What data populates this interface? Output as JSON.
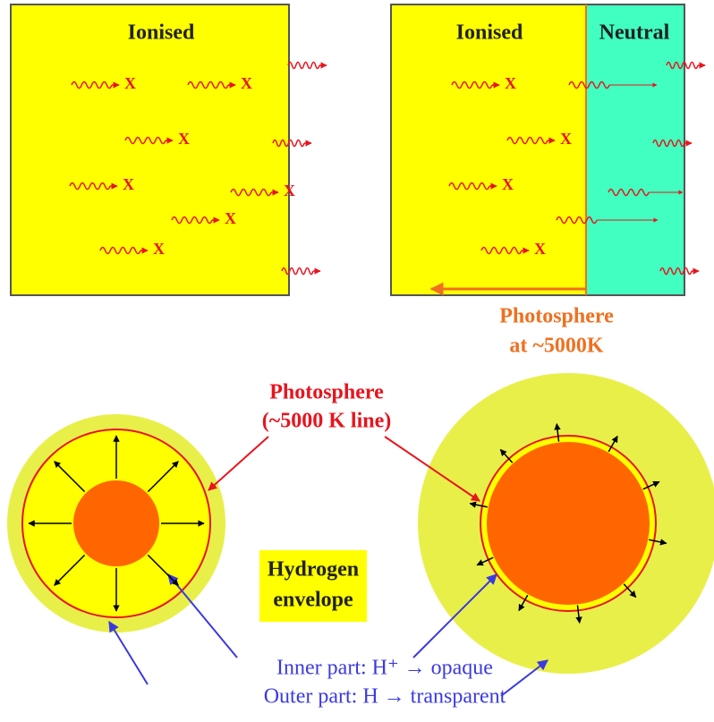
{
  "top": {
    "left_panel": {
      "label": "Ionised"
    },
    "right_panel": {
      "ionised_label": "Ionised",
      "neutral_label": "Neutral",
      "photosphere_label": [
        "Photosphere",
        "at ~5000K"
      ]
    },
    "absorbed_marker": "X"
  },
  "bottom": {
    "photosphere_label": [
      "Photosphere",
      "(~5000 K line)"
    ],
    "envelope_label": [
      "Hydrogen",
      "envelope"
    ],
    "inner_part": "Inner part: H⁺ → opaque",
    "outer_part": "Outer part: H → transparent"
  }
}
